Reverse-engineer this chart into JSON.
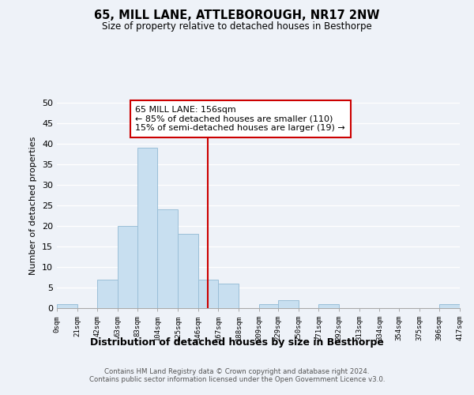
{
  "title": "65, MILL LANE, ATTLEBOROUGH, NR17 2NW",
  "subtitle": "Size of property relative to detached houses in Besthorpe",
  "xlabel": "Distribution of detached houses by size in Besthorpe",
  "ylabel": "Number of detached properties",
  "bar_edges": [
    0,
    21,
    42,
    63,
    83,
    104,
    125,
    146,
    167,
    188,
    209,
    229,
    250,
    271,
    292,
    313,
    334,
    354,
    375,
    396,
    417
  ],
  "bar_heights": [
    1,
    0,
    7,
    20,
    39,
    24,
    18,
    7,
    6,
    0,
    1,
    2,
    0,
    1,
    0,
    0,
    0,
    0,
    0,
    1
  ],
  "bar_color": "#c8dff0",
  "bar_edge_color": "#9bbfd8",
  "vline_x": 156,
  "vline_color": "#cc0000",
  "ylim": [
    0,
    50
  ],
  "yticks": [
    0,
    5,
    10,
    15,
    20,
    25,
    30,
    35,
    40,
    45,
    50
  ],
  "tick_labels": [
    "0sqm",
    "21sqm",
    "42sqm",
    "63sqm",
    "83sqm",
    "104sqm",
    "125sqm",
    "146sqm",
    "167sqm",
    "188sqm",
    "209sqm",
    "229sqm",
    "250sqm",
    "271sqm",
    "292sqm",
    "313sqm",
    "334sqm",
    "354sqm",
    "375sqm",
    "396sqm",
    "417sqm"
  ],
  "annotation_title": "65 MILL LANE: 156sqm",
  "annotation_line1": "← 85% of detached houses are smaller (110)",
  "annotation_line2": "15% of semi-detached houses are larger (19) →",
  "annotation_box_color": "#ffffff",
  "annotation_border_color": "#cc0000",
  "footer_line1": "Contains HM Land Registry data © Crown copyright and database right 2024.",
  "footer_line2": "Contains public sector information licensed under the Open Government Licence v3.0.",
  "bg_color": "#eef2f8"
}
